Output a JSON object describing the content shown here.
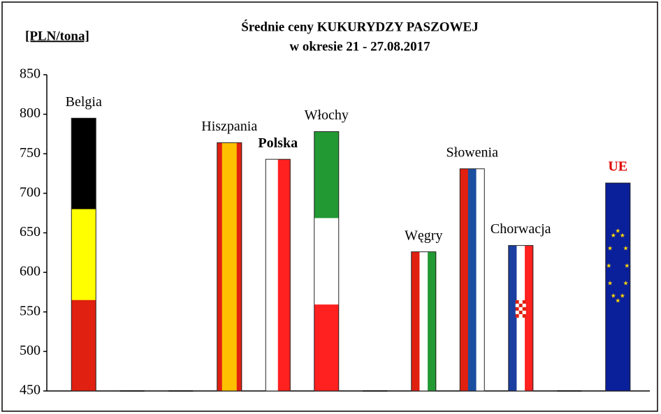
{
  "chart_data": {
    "type": "bar",
    "title": "Średnie ceny KUKURYDZY PASZOWEJ",
    "subtitle": "w okresie  21 - 27.08.2017",
    "y_axis_label": "[PLN/tona]",
    "categories": [
      "Belgia",
      null,
      null,
      "Hiszpania",
      "Polska",
      "Włochy",
      null,
      "Węgry",
      "Słowenia",
      "Chorwacja",
      null,
      "UE"
    ],
    "values": [
      795,
      null,
      null,
      764,
      743,
      778,
      null,
      626,
      731,
      634,
      null,
      713
    ],
    "ylim": [
      450,
      850
    ],
    "yticks": [
      450,
      500,
      550,
      600,
      650,
      700,
      750,
      800,
      850
    ],
    "grid": false
  }
}
